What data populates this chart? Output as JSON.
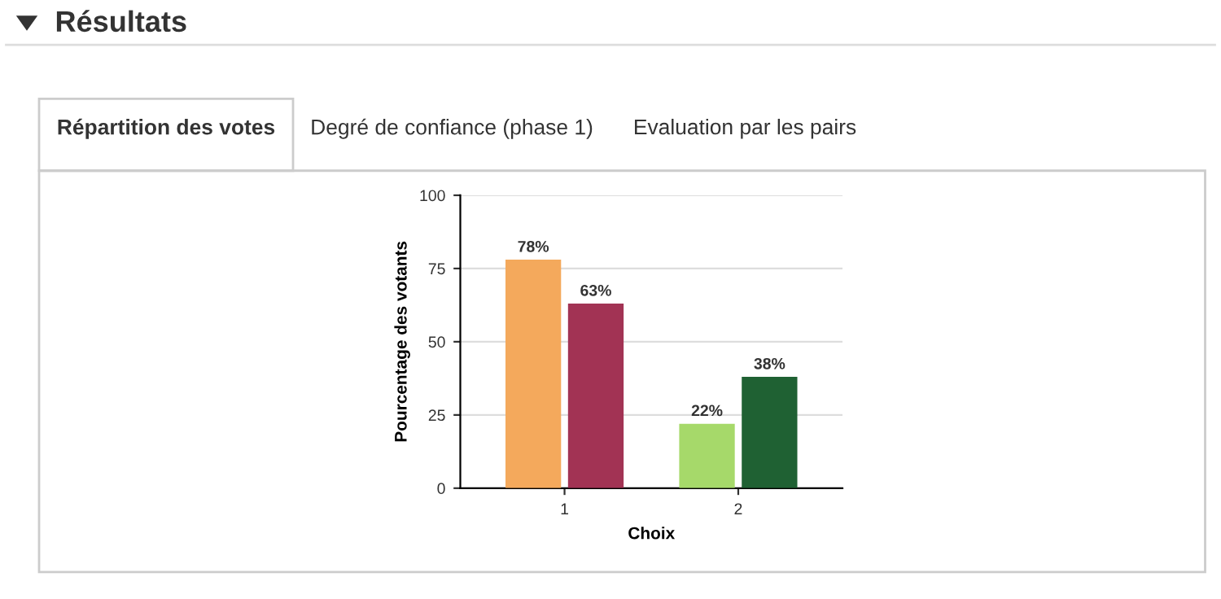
{
  "chart_data": [
    {
      "type": "other",
      "title": "Résultats",
      "annotations": [
        "Répartition des votes",
        "Degré de confiance (phase 1)",
        "Evaluation par les pairs"
      ]
    },
    {
      "type": "bar",
      "categories": [
        "1",
        "2"
      ],
      "xlabel": "Choix",
      "ylabel": "Pourcentage des votants",
      "ylim": [
        0,
        100
      ],
      "yticks": [
        0,
        25,
        50,
        75,
        100
      ],
      "grid": "y",
      "series": [
        {
          "colors": [
            "#f4a95c",
            "#a6d96a"
          ],
          "values": [
            78,
            22
          ],
          "value_labels": [
            "78%",
            "22%"
          ]
        },
        {
          "colors": [
            "#a23354",
            "#1f6133"
          ],
          "values": [
            63,
            38
          ],
          "value_labels": [
            "63%",
            "38%"
          ]
        }
      ]
    }
  ]
}
